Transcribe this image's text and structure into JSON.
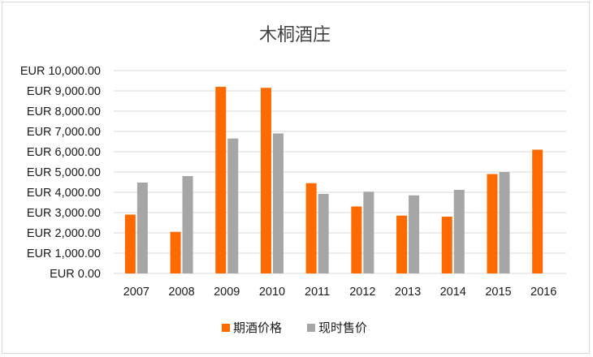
{
  "chart_data": {
    "type": "bar",
    "title": "木桐酒庄",
    "categories": [
      "2007",
      "2008",
      "2009",
      "2010",
      "2011",
      "2012",
      "2013",
      "2014",
      "2015",
      "2016"
    ],
    "series": [
      {
        "name": "期酒价格",
        "color": "#ff6a00",
        "values": [
          2900,
          2050,
          9200,
          9150,
          4450,
          3300,
          2850,
          2800,
          4900,
          6100
        ]
      },
      {
        "name": "现时售价",
        "color": "#a6a6a6",
        "values": [
          4480,
          4800,
          6650,
          6900,
          3920,
          4030,
          3850,
          4120,
          5000,
          null
        ]
      }
    ],
    "ylim": [
      0,
      10000
    ],
    "ytick_labels": [
      "EUR 0.00",
      "EUR 1,000.00",
      "EUR 2,000.00",
      "EUR 3,000.00",
      "EUR 4,000.00",
      "EUR 5,000.00",
      "EUR 6,000.00",
      "EUR 7,000.00",
      "EUR 8,000.00",
      "EUR 9,000.00",
      "EUR 10,000.00"
    ],
    "grid": true,
    "legend_position": "bottom"
  }
}
